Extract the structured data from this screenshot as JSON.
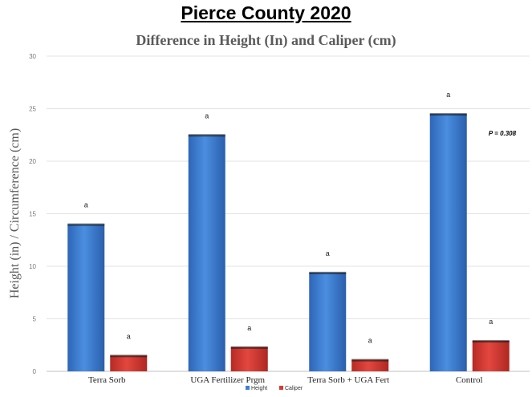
{
  "page": {
    "heading": "Pierce County 2020"
  },
  "chart_data": {
    "type": "bar",
    "title": "Difference in Height (In) and Caliper (cm)",
    "ylabel": "Height (in) / Circumference (cm)",
    "xlabel": "",
    "ylim": [
      0,
      30
    ],
    "yticks": [
      0,
      5,
      10,
      15,
      20,
      25,
      30
    ],
    "grid": true,
    "legend_position": "bottom",
    "categories": [
      "Terra Sorb",
      "UGA Fertilizer Prgm",
      "Terra Sorb + UGA Fert",
      "Control"
    ],
    "series": [
      {
        "name": "Height",
        "color": "#3d7fd6",
        "values": [
          14.0,
          22.5,
          9.4,
          24.5
        ],
        "labels": [
          "a",
          "a",
          "a",
          "a"
        ]
      },
      {
        "name": "Caliper",
        "color": "#d93a33",
        "values": [
          1.5,
          2.3,
          1.1,
          2.9
        ],
        "labels": [
          "a",
          "a",
          "a",
          "a"
        ]
      }
    ],
    "annotation": "P = 0.308"
  }
}
